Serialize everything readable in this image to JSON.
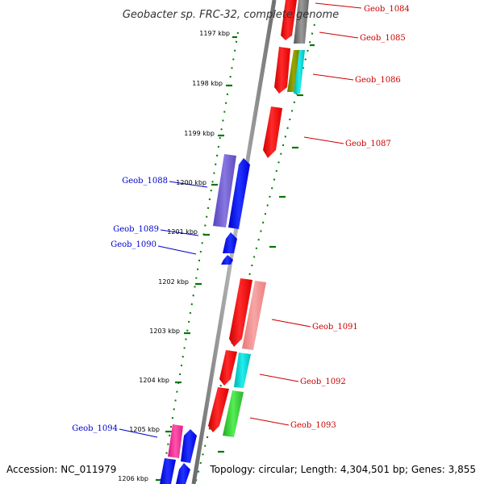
{
  "title": "Geobacter sp. FRC-32, complete genome",
  "footer": {
    "accession": "Accession: NC_011979",
    "topology": "Topology: circular; Length: 4,304,501 bp; Genes: 3,855"
  },
  "colors": {
    "forward_label": "#cc0000",
    "reverse_label": "#0000cc",
    "tick": "#007700",
    "backbone": "#808080"
  },
  "ticks": [
    {
      "label": "1197 kbp"
    },
    {
      "label": "1198 kbp"
    },
    {
      "label": "1199 kbp"
    },
    {
      "label": "1200 kbp"
    },
    {
      "label": "1201 kbp"
    },
    {
      "label": "1202 kbp"
    },
    {
      "label": "1203 kbp"
    },
    {
      "label": "1204 kbp"
    },
    {
      "label": "1205 kbp"
    },
    {
      "label": "1206 kbp"
    }
  ],
  "gene_labels": [
    {
      "name": "Geob_1084",
      "strand": "forward"
    },
    {
      "name": "Geob_1085",
      "strand": "forward"
    },
    {
      "name": "Geob_1086",
      "strand": "forward"
    },
    {
      "name": "Geob_1087",
      "strand": "forward"
    },
    {
      "name": "Geob_1088",
      "strand": "reverse"
    },
    {
      "name": "Geob_1089",
      "strand": "reverse"
    },
    {
      "name": "Geob_1090",
      "strand": "reverse"
    },
    {
      "name": "Geob_1091",
      "strand": "forward"
    },
    {
      "name": "Geob_1092",
      "strand": "forward"
    },
    {
      "name": "Geob_1093",
      "strand": "forward"
    },
    {
      "name": "Geob_1094",
      "strand": "reverse"
    }
  ]
}
